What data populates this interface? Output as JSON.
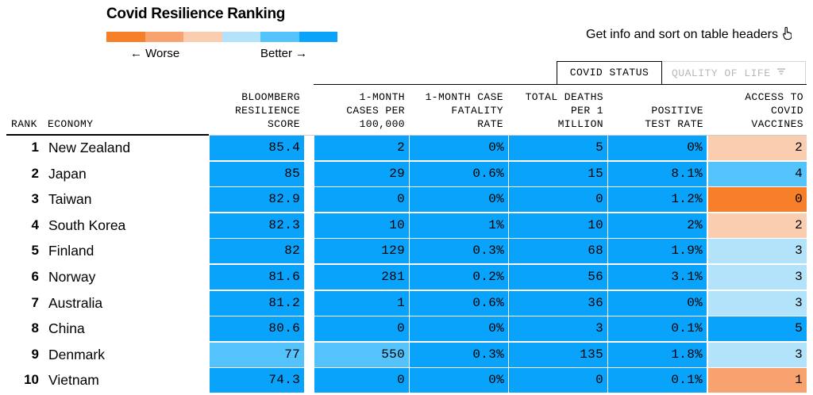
{
  "title": "Covid Resilience Ranking",
  "legend": {
    "worse_label": "← Worse",
    "better_label": "Better →",
    "colors": [
      "#f77f2a",
      "#f8a36f",
      "#fbcdb0",
      "#b3e2fb",
      "#55c3fb",
      "#0aa3fb"
    ]
  },
  "info_text": "Get info and sort on table headers",
  "info_icon": "pointer-hand-icon",
  "tabs": {
    "active": "COVID STATUS",
    "inactive": "QUALITY OF LIFE",
    "inactive_icon": "filter-icon"
  },
  "headers": {
    "rank": "RANK",
    "economy": "ECONOMY",
    "score": [
      "BLOOMBERG",
      "RESILIENCE",
      "SCORE"
    ],
    "cases": [
      "1-MONTH",
      "CASES PER",
      "100,000"
    ],
    "cfr": [
      "1-MONTH CASE",
      "FATALITY",
      "RATE"
    ],
    "deaths": [
      "TOTAL DEATHS",
      "PER 1",
      "MILLION"
    ],
    "ptr": [
      "POSITIVE",
      "TEST RATE"
    ],
    "vacc": [
      "ACCESS TO",
      "COVID",
      "VACCINES"
    ]
  },
  "rows": [
    {
      "rank": "1",
      "economy": "New Zealand",
      "score": "85.4",
      "cases": "2",
      "cfr": "0%",
      "deaths": "5",
      "ptr": "0%",
      "vacc": "2",
      "colors": {
        "score": "#0aa3fb",
        "cases": "#0aa3fb",
        "cfr": "#0aa3fb",
        "deaths": "#0aa3fb",
        "ptr": "#0aa3fb",
        "vacc": "#fbcdb0"
      }
    },
    {
      "rank": "2",
      "economy": "Japan",
      "score": "85",
      "cases": "29",
      "cfr": "0.6%",
      "deaths": "15",
      "ptr": "8.1%",
      "vacc": "4",
      "colors": {
        "score": "#0aa3fb",
        "cases": "#0aa3fb",
        "cfr": "#0aa3fb",
        "deaths": "#0aa3fb",
        "ptr": "#0aa3fb",
        "vacc": "#55c3fb"
      }
    },
    {
      "rank": "3",
      "economy": "Taiwan",
      "score": "82.9",
      "cases": "0",
      "cfr": "0%",
      "deaths": "0",
      "ptr": "1.2%",
      "vacc": "0",
      "colors": {
        "score": "#0aa3fb",
        "cases": "#0aa3fb",
        "cfr": "#0aa3fb",
        "deaths": "#0aa3fb",
        "ptr": "#0aa3fb",
        "vacc": "#f77f2a"
      }
    },
    {
      "rank": "4",
      "economy": "South Korea",
      "score": "82.3",
      "cases": "10",
      "cfr": "1%",
      "deaths": "10",
      "ptr": "2%",
      "vacc": "2",
      "colors": {
        "score": "#0aa3fb",
        "cases": "#0aa3fb",
        "cfr": "#0aa3fb",
        "deaths": "#0aa3fb",
        "ptr": "#0aa3fb",
        "vacc": "#fbcdb0"
      }
    },
    {
      "rank": "5",
      "economy": "Finland",
      "score": "82",
      "cases": "129",
      "cfr": "0.3%",
      "deaths": "68",
      "ptr": "1.9%",
      "vacc": "3",
      "colors": {
        "score": "#0aa3fb",
        "cases": "#0aa3fb",
        "cfr": "#0aa3fb",
        "deaths": "#0aa3fb",
        "ptr": "#0aa3fb",
        "vacc": "#b3e2fb"
      }
    },
    {
      "rank": "6",
      "economy": "Norway",
      "score": "81.6",
      "cases": "281",
      "cfr": "0.2%",
      "deaths": "56",
      "ptr": "3.1%",
      "vacc": "3",
      "colors": {
        "score": "#0aa3fb",
        "cases": "#0aa3fb",
        "cfr": "#0aa3fb",
        "deaths": "#0aa3fb",
        "ptr": "#0aa3fb",
        "vacc": "#b3e2fb"
      }
    },
    {
      "rank": "7",
      "economy": "Australia",
      "score": "81.2",
      "cases": "1",
      "cfr": "0.6%",
      "deaths": "36",
      "ptr": "0%",
      "vacc": "3",
      "colors": {
        "score": "#0aa3fb",
        "cases": "#0aa3fb",
        "cfr": "#0aa3fb",
        "deaths": "#0aa3fb",
        "ptr": "#0aa3fb",
        "vacc": "#b3e2fb"
      }
    },
    {
      "rank": "8",
      "economy": "China",
      "score": "80.6",
      "cases": "0",
      "cfr": "0%",
      "deaths": "3",
      "ptr": "0.1%",
      "vacc": "5",
      "colors": {
        "score": "#0aa3fb",
        "cases": "#0aa3fb",
        "cfr": "#0aa3fb",
        "deaths": "#0aa3fb",
        "ptr": "#0aa3fb",
        "vacc": "#0aa3fb"
      }
    },
    {
      "rank": "9",
      "economy": "Denmark",
      "score": "77",
      "cases": "550",
      "cfr": "0.3%",
      "deaths": "135",
      "ptr": "1.8%",
      "vacc": "3",
      "colors": {
        "score": "#55c3fb",
        "cases": "#55c3fb",
        "cfr": "#0aa3fb",
        "deaths": "#0aa3fb",
        "ptr": "#0aa3fb",
        "vacc": "#b3e2fb"
      }
    },
    {
      "rank": "10",
      "economy": "Vietnam",
      "score": "74.3",
      "cases": "0",
      "cfr": "0%",
      "deaths": "0",
      "ptr": "0.1%",
      "vacc": "1",
      "colors": {
        "score": "#0aa3fb",
        "cases": "#0aa3fb",
        "cfr": "#0aa3fb",
        "deaths": "#0aa3fb",
        "ptr": "#0aa3fb",
        "vacc": "#f8a36f"
      }
    }
  ]
}
